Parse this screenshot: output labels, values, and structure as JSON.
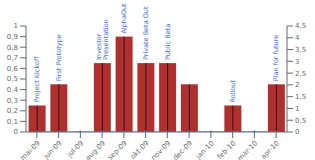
{
  "chart_data": {
    "type": "bar",
    "categories": [
      "mai-09",
      "jun-09",
      "jul-09",
      "aug-09",
      "sep-09",
      "okt-09",
      "nov-09",
      "dec-09",
      "jan-10",
      "feb-10",
      "mar-10",
      "apr-10"
    ],
    "series": [
      {
        "type": "bar",
        "color": "#b03030",
        "values": [
          0.25,
          0.45,
          0.0,
          0.65,
          0.9,
          0.65,
          0.65,
          0.45,
          0.0,
          0.25,
          0.0,
          0.45
        ]
      },
      {
        "type": "line",
        "axis": "y2",
        "color": "#4472c4",
        "marker": "circle",
        "values": [
          0,
          0,
          0,
          0,
          0,
          0,
          0,
          0,
          0,
          0,
          0,
          0
        ]
      }
    ],
    "ylim": [
      0,
      1.0
    ],
    "yticks": [
      0,
      {
        "value": 0.1,
        "label": "0,1"
      },
      {
        "value": 0.2,
        "label": "0,2"
      },
      {
        "value": 0.3,
        "label": "0,3"
      },
      {
        "value": 0.4,
        "label": "0,4"
      },
      {
        "value": 0.5,
        "label": "0,5"
      },
      {
        "value": 0.6,
        "label": "0,6"
      },
      {
        "value": 0.7,
        "label": "0,7"
      },
      {
        "value": 0.8,
        "label": "0,8"
      },
      {
        "value": 0.9,
        "label": "0,9"
      },
      1
    ],
    "y2lim": [
      0,
      4.5
    ],
    "y2ticks": [
      0,
      {
        "value": 0.5,
        "label": "0,5"
      },
      1,
      {
        "value": 1.5,
        "label": "1,5"
      },
      2,
      {
        "value": 2.5,
        "label": "2,5"
      },
      3,
      {
        "value": 3.5,
        "label": "3,5"
      },
      4,
      {
        "value": 4.5,
        "label": "4,5"
      }
    ],
    "annotations": [
      {
        "category": "mai-09",
        "text": "Project Kickoff",
        "color": "#4472c4"
      },
      {
        "category": "jun-09",
        "text": "First Prototype",
        "color": "#4472c4"
      },
      {
        "category": "aug-09",
        "text": "Investor\nPresentation",
        "color": "#4472c4"
      },
      {
        "category": "sep-09",
        "text": "AlphaOut",
        "color": "#4472c4"
      },
      {
        "category": "okt-09",
        "text": "Private Beta Out",
        "color": "#4472c4"
      },
      {
        "category": "nov-09",
        "text": "Public Beta",
        "color": "#4472c4"
      },
      {
        "category": "feb-10",
        "text": "Rollout",
        "color": "#4472c4"
      },
      {
        "category": "apr-10",
        "text": "Plan for future",
        "color": "#4472c4"
      }
    ],
    "grid": false
  }
}
